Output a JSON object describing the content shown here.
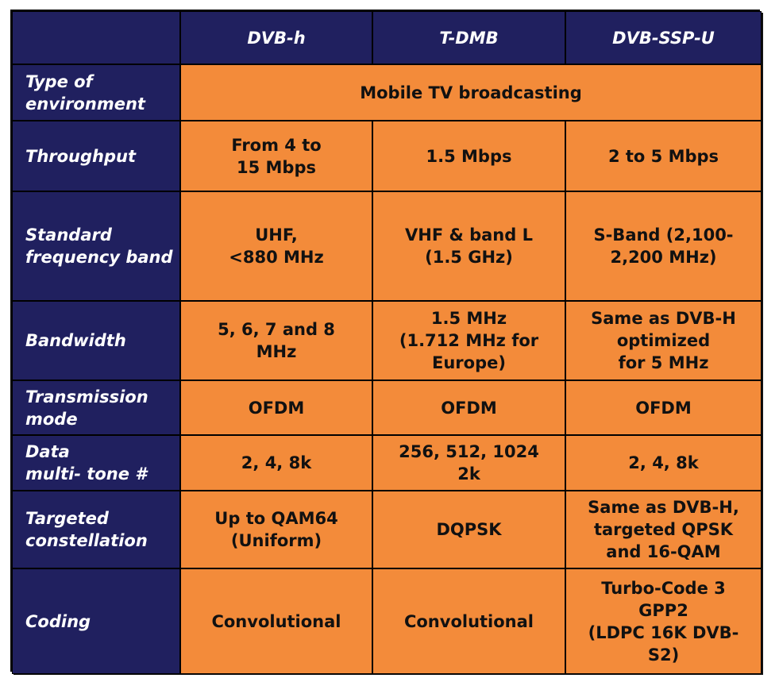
{
  "table": {
    "columns": [
      "",
      "DVB-h",
      "T-DMB",
      "DVB-SSP-U"
    ],
    "environment": {
      "label": "Type of\nenvironment",
      "value": "Mobile TV broadcasting"
    },
    "rows": [
      {
        "label": "Throughput",
        "values": [
          "From 4 to\n15 Mbps",
          "1.5 Mbps",
          "2 to 5 Mbps"
        ]
      },
      {
        "label": "Standard\nfrequency band",
        "values": [
          "UHF,\n<880 MHz",
          "VHF & band L\n(1.5 GHz)",
          "S-Band (2,100-\n2,200 MHz)"
        ]
      },
      {
        "label": "Bandwidth",
        "values": [
          "5, 6, 7 and 8\nMHz",
          "1.5 MHz\n(1.712 MHz for\nEurope)",
          "Same as DVB-H\noptimized\nfor 5 MHz"
        ]
      },
      {
        "label": "Transmission\nmode",
        "values": [
          "OFDM",
          "OFDM",
          "OFDM"
        ]
      },
      {
        "label": "Data\nmulti- tone #",
        "values": [
          "2, 4, 8k",
          "256, 512, 1024\n2k",
          "2, 4, 8k"
        ]
      },
      {
        "label": "Targeted\nconstellation",
        "values": [
          "Up to QAM64\n(Uniform)",
          "DQPSK",
          "Same as DVB-H,\ntargeted QPSK\nand 16-QAM"
        ]
      },
      {
        "label": "Coding",
        "values": [
          "Convolutional",
          "Convolutional",
          "Turbo-Code 3\nGPP2\n(LDPC 16K DVB-\nS2)"
        ]
      }
    ]
  },
  "colors": {
    "navy": "#20205f",
    "orange": "#f38b3a",
    "text_dark": "#111111",
    "text_light": "#ffffff"
  }
}
